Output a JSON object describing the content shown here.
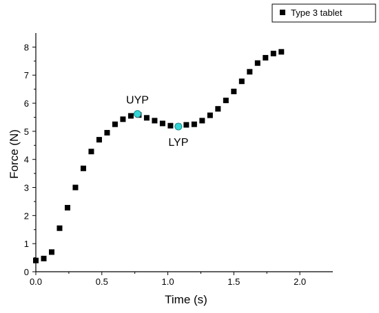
{
  "chart_data": {
    "type": "scatter",
    "title": "",
    "xlabel": "Time (s)",
    "ylabel": "Force (N)",
    "xlim": [
      0,
      2.25
    ],
    "ylim": [
      0,
      8.5
    ],
    "x_ticks": [
      "0.0",
      "0.5",
      "1.0",
      "1.5",
      "2.0"
    ],
    "y_ticks": [
      "0",
      "1",
      "2",
      "3",
      "4",
      "5",
      "6",
      "7",
      "8"
    ],
    "grid": false,
    "legend_position": "top-right",
    "series": [
      {
        "name": "Type 3 tablet",
        "marker": "square",
        "color": "#000000",
        "x": [
          0.0,
          0.06,
          0.12,
          0.18,
          0.24,
          0.3,
          0.36,
          0.42,
          0.48,
          0.54,
          0.6,
          0.66,
          0.72,
          0.78,
          0.84,
          0.9,
          0.96,
          1.02,
          1.08,
          1.14,
          1.2,
          1.26,
          1.32,
          1.38,
          1.44,
          1.5,
          1.56,
          1.62,
          1.68,
          1.74,
          1.8,
          1.86
        ],
        "y": [
          0.4,
          0.47,
          0.7,
          1.55,
          2.28,
          3.0,
          3.68,
          4.28,
          4.7,
          4.95,
          5.25,
          5.43,
          5.55,
          5.58,
          5.48,
          5.38,
          5.28,
          5.2,
          5.18,
          5.23,
          5.25,
          5.38,
          5.57,
          5.8,
          6.1,
          6.42,
          6.78,
          7.12,
          7.43,
          7.62,
          7.77,
          7.83
        ]
      }
    ],
    "annotations": [
      {
        "label": "UYP",
        "x": 0.77,
        "y": 5.62,
        "color": "#33d6d6",
        "label_position": "above"
      },
      {
        "label": "LYP",
        "x": 1.08,
        "y": 5.17,
        "color": "#33d6d6",
        "label_position": "below"
      }
    ]
  }
}
